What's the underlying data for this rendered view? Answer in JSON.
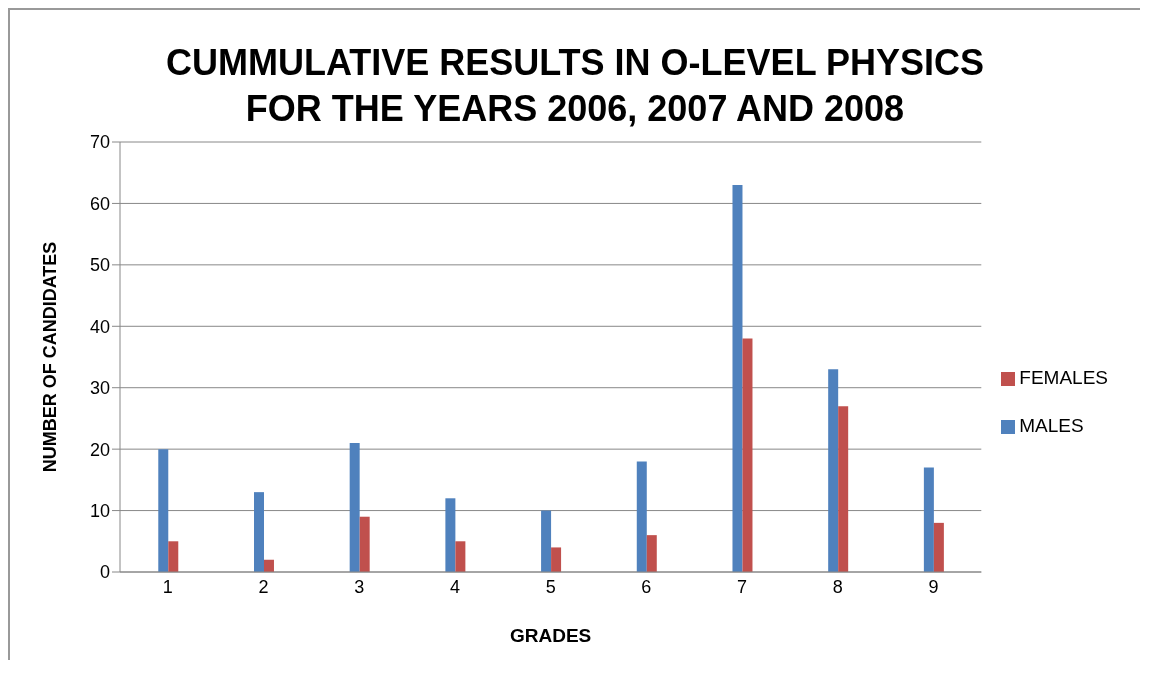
{
  "chart_data": {
    "type": "bar",
    "title": "CUMMULATIVE RESULTS IN O-LEVEL PHYSICS FOR THE YEARS 2006, 2007 AND 2008",
    "xlabel": "GRADES",
    "ylabel": "NUMBER OF CANDIDATES",
    "categories": [
      "1",
      "2",
      "3",
      "4",
      "5",
      "6",
      "7",
      "8",
      "9"
    ],
    "series": [
      {
        "name": "MALES",
        "color": "#4f81bd",
        "values": [
          20,
          13,
          21,
          12,
          10,
          18,
          63,
          33,
          17
        ]
      },
      {
        "name": "FEMALES",
        "color": "#c0504d",
        "values": [
          5,
          2,
          9,
          5,
          4,
          6,
          38,
          27,
          8
        ]
      }
    ],
    "ylim": [
      0,
      70
    ],
    "yticks": [
      0,
      10,
      20,
      30,
      40,
      50,
      60,
      70
    ],
    "grid": "y",
    "legend": "right"
  }
}
